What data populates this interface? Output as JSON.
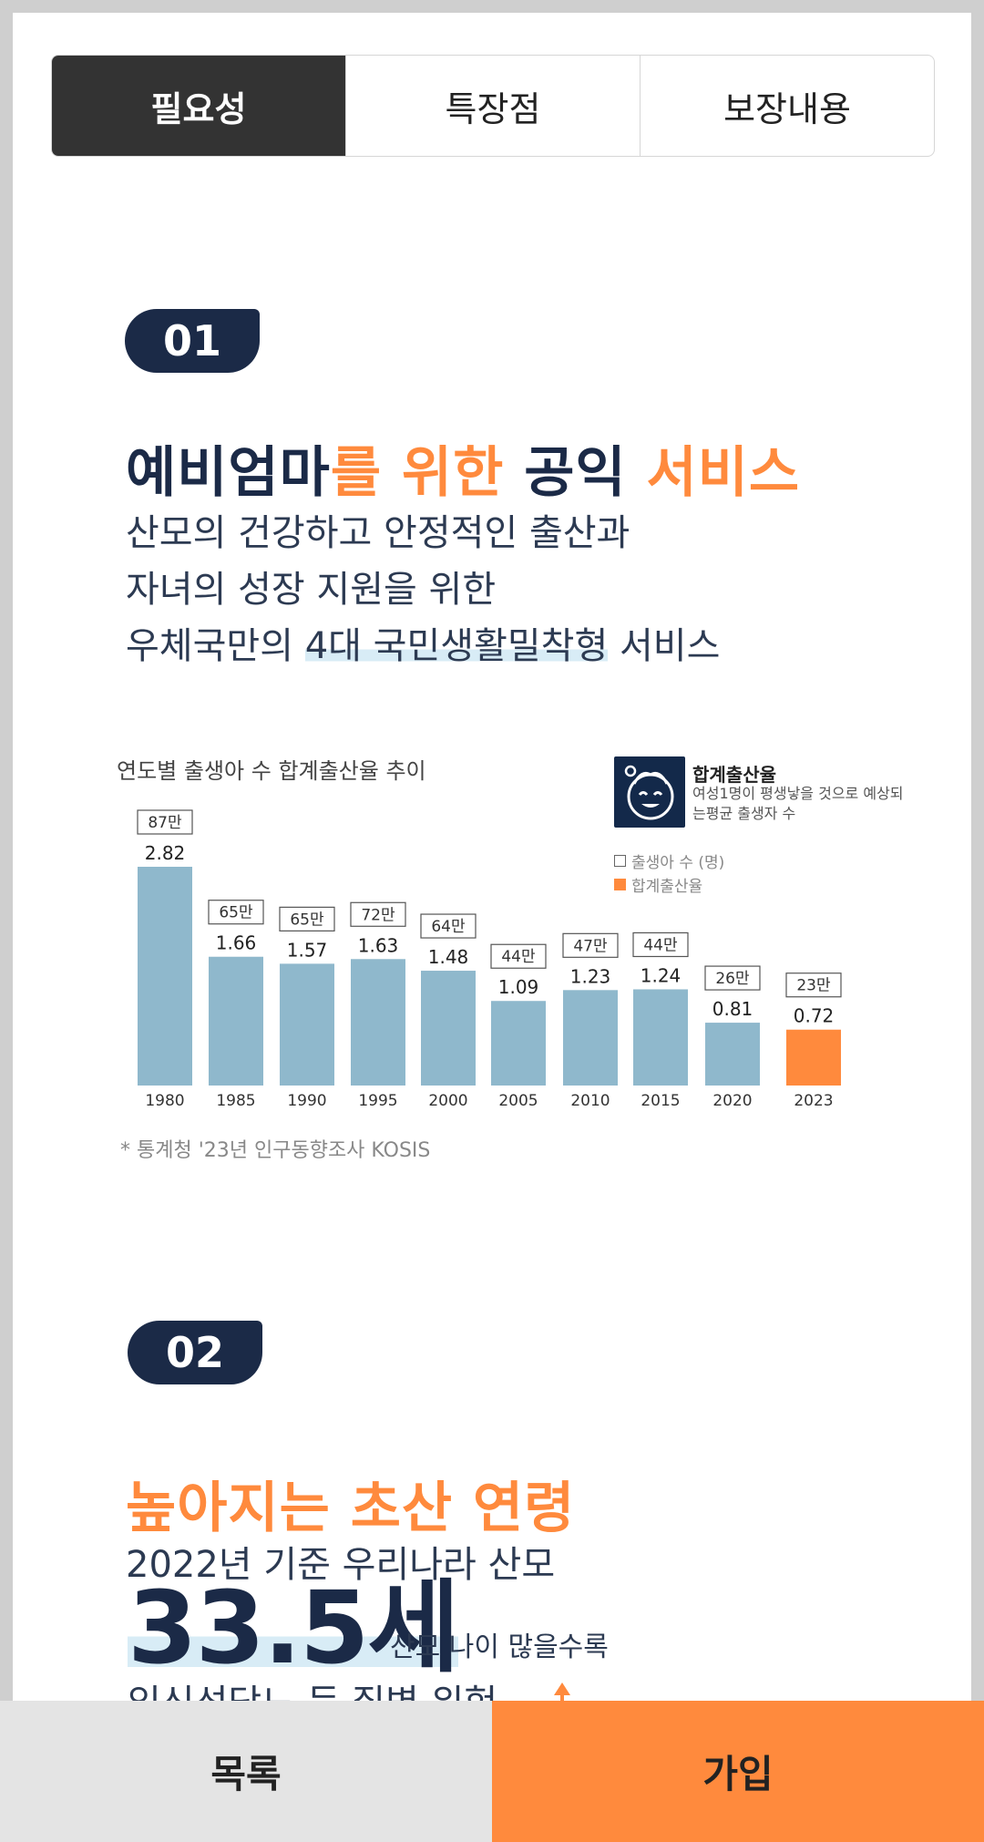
{
  "tabs": [
    {
      "label": "필요성",
      "active": true
    },
    {
      "label": "특장점",
      "active": false
    },
    {
      "label": "보장내용",
      "active": false
    }
  ],
  "section1": {
    "badge": "01",
    "heading": {
      "part1": "예비엄마",
      "part2": "를 위한 ",
      "part3": "공익 ",
      "part4": "서비스"
    },
    "lines": [
      "산모의 건강하고 안정적인 출산과",
      "자녀의 성장 지원을 위한"
    ],
    "line3_prefix": "우체국만의 ",
    "line3_highlight": "4대 국민생활밀착형",
    "line3_suffix": " 서비스"
  },
  "chart_data": {
    "type": "bar",
    "title": "연도별 출생아 수 합계출산율 추이",
    "categories": [
      "1980",
      "1985",
      "1990",
      "1995",
      "2000",
      "2005",
      "2010",
      "2015",
      "2020",
      "2023"
    ],
    "series": [
      {
        "name": "합계출산율",
        "values": [
          2.82,
          1.66,
          1.57,
          1.63,
          1.48,
          1.09,
          1.23,
          1.24,
          0.81,
          0.72
        ]
      },
      {
        "name": "출생아 수 (명)",
        "values": [
          "87만",
          "65만",
          "65만",
          "72만",
          "64만",
          "44만",
          "47만",
          "44만",
          "26만",
          "23만"
        ]
      }
    ],
    "ylim": [
      0,
      3
    ],
    "colors": {
      "bar": "#8fb8cc",
      "highlight": "#ff8a3d"
    },
    "legend": {
      "title": "합계출산율",
      "desc": "여성1명이 평생낳을 것으로 예상되는평균 출생자 수",
      "items": [
        "출생아 수 (명)",
        "합계출산율"
      ]
    },
    "source": "* 통계청 '23년 인구동향조사 KOSIS"
  },
  "section2": {
    "badge": "02",
    "heading": "높아지는 초산 연령",
    "line1": "2022년 기준 우리나라 산모",
    "age": "33.5세",
    "age_note": "산모 나이 많을수록",
    "cut_text": "임신성당뇨 등 질병 위험"
  },
  "bottom": {
    "list_label": "목록",
    "join_label": "가입"
  }
}
